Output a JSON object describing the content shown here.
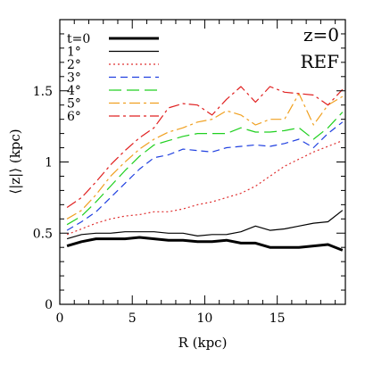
{
  "chart_data": {
    "type": "line",
    "title": "",
    "xlabel": "R (kpc)",
    "ylabel": "⟨|z|⟩ (kpc)",
    "xlim": [
      0,
      19.7
    ],
    "ylim": [
      0,
      2.0
    ],
    "x_ticks": [
      0,
      5,
      10,
      15
    ],
    "y_ticks": [
      0,
      0.5,
      1,
      1.5
    ],
    "x_tick_labels": [
      "0",
      "5",
      "10",
      "15"
    ],
    "y_tick_labels": [
      "0",
      "0.5",
      "1",
      "1.5"
    ],
    "grid": false,
    "legend_position": "top-left",
    "annotations": [
      "z=0",
      "REF"
    ],
    "series": [
      {
        "name": "t=0",
        "color": "#000000",
        "dash": "solid",
        "width": "thick",
        "x": [
          0.5,
          1.5,
          2.5,
          3.5,
          4.5,
          5.5,
          6.5,
          7.5,
          8.5,
          9.5,
          10.5,
          11.5,
          12.5,
          13.5,
          14.5,
          15.5,
          16.5,
          17.5,
          18.5,
          19.5
        ],
        "y": [
          0.41,
          0.44,
          0.46,
          0.46,
          0.46,
          0.47,
          0.46,
          0.45,
          0.45,
          0.44,
          0.44,
          0.45,
          0.43,
          0.43,
          0.4,
          0.4,
          0.4,
          0.41,
          0.42,
          0.38
        ]
      },
      {
        "name": "1°",
        "color": "#000000",
        "dash": "solid",
        "width": "thin",
        "x": [
          0.5,
          1.5,
          2.5,
          3.5,
          4.5,
          5.5,
          6.5,
          7.5,
          8.5,
          9.5,
          10.5,
          11.5,
          12.5,
          13.5,
          14.5,
          15.5,
          16.5,
          17.5,
          18.5,
          19.5
        ],
        "y": [
          0.46,
          0.49,
          0.5,
          0.5,
          0.51,
          0.51,
          0.51,
          0.5,
          0.5,
          0.48,
          0.49,
          0.49,
          0.51,
          0.55,
          0.52,
          0.53,
          0.55,
          0.57,
          0.58,
          0.66
        ]
      },
      {
        "name": "2°",
        "color": "#e03030",
        "dash": "dotted",
        "width": "thin",
        "x": [
          0.5,
          1.5,
          2.5,
          3.5,
          4.5,
          5.5,
          6.5,
          7.5,
          8.5,
          9.5,
          10.5,
          11.5,
          12.5,
          13.5,
          14.5,
          15.5,
          16.5,
          17.5,
          18.5,
          19.5
        ],
        "y": [
          0.49,
          0.53,
          0.57,
          0.6,
          0.62,
          0.63,
          0.65,
          0.65,
          0.67,
          0.7,
          0.72,
          0.75,
          0.78,
          0.83,
          0.9,
          0.97,
          1.02,
          1.07,
          1.11,
          1.15
        ]
      },
      {
        "name": "3°",
        "color": "#2040e0",
        "dash": "dashed",
        "width": "thin",
        "x": [
          0.5,
          1.5,
          2.5,
          3.5,
          4.5,
          5.5,
          6.5,
          7.5,
          8.5,
          9.5,
          10.5,
          11.5,
          12.5,
          13.5,
          14.5,
          15.5,
          16.5,
          17.5,
          18.5,
          19.5
        ],
        "y": [
          0.52,
          0.58,
          0.65,
          0.75,
          0.85,
          0.95,
          1.03,
          1.05,
          1.09,
          1.08,
          1.07,
          1.1,
          1.11,
          1.12,
          1.11,
          1.13,
          1.16,
          1.1,
          1.2,
          1.28
        ]
      },
      {
        "name": "4°",
        "color": "#20d020",
        "dash": "longdash",
        "width": "thin",
        "x": [
          0.5,
          1.5,
          2.5,
          3.5,
          4.5,
          5.5,
          6.5,
          7.5,
          8.5,
          9.5,
          10.5,
          11.5,
          12.5,
          13.5,
          14.5,
          15.5,
          16.5,
          17.5,
          18.5,
          19.5
        ],
        "y": [
          0.56,
          0.62,
          0.72,
          0.83,
          0.94,
          1.04,
          1.12,
          1.15,
          1.18,
          1.2,
          1.2,
          1.2,
          1.24,
          1.21,
          1.21,
          1.22,
          1.24,
          1.16,
          1.24,
          1.35
        ]
      },
      {
        "name": "5°",
        "color": "#f0a020",
        "dash": "dashdot",
        "width": "thin",
        "x": [
          0.5,
          1.5,
          2.5,
          3.5,
          4.5,
          5.5,
          6.5,
          7.5,
          8.5,
          9.5,
          10.5,
          11.5,
          12.5,
          13.5,
          14.5,
          15.5,
          16.5,
          17.5,
          18.5,
          19.5
        ],
        "y": [
          0.6,
          0.66,
          0.77,
          0.9,
          1.0,
          1.09,
          1.16,
          1.21,
          1.24,
          1.28,
          1.3,
          1.36,
          1.33,
          1.26,
          1.3,
          1.3,
          1.48,
          1.26,
          1.4,
          1.46
        ]
      },
      {
        "name": "6°",
        "color": "#e02020",
        "dash": "dashdot",
        "width": "thin",
        "x": [
          0.5,
          1.5,
          2.5,
          3.5,
          4.5,
          5.5,
          6.5,
          7.5,
          8.5,
          9.5,
          10.5,
          11.5,
          12.5,
          13.5,
          14.5,
          15.5,
          16.5,
          17.5,
          18.5,
          19.5
        ],
        "y": [
          0.68,
          0.75,
          0.86,
          0.98,
          1.08,
          1.17,
          1.24,
          1.38,
          1.41,
          1.4,
          1.33,
          1.44,
          1.53,
          1.42,
          1.53,
          1.49,
          1.48,
          1.47,
          1.4,
          1.51
        ]
      }
    ]
  }
}
